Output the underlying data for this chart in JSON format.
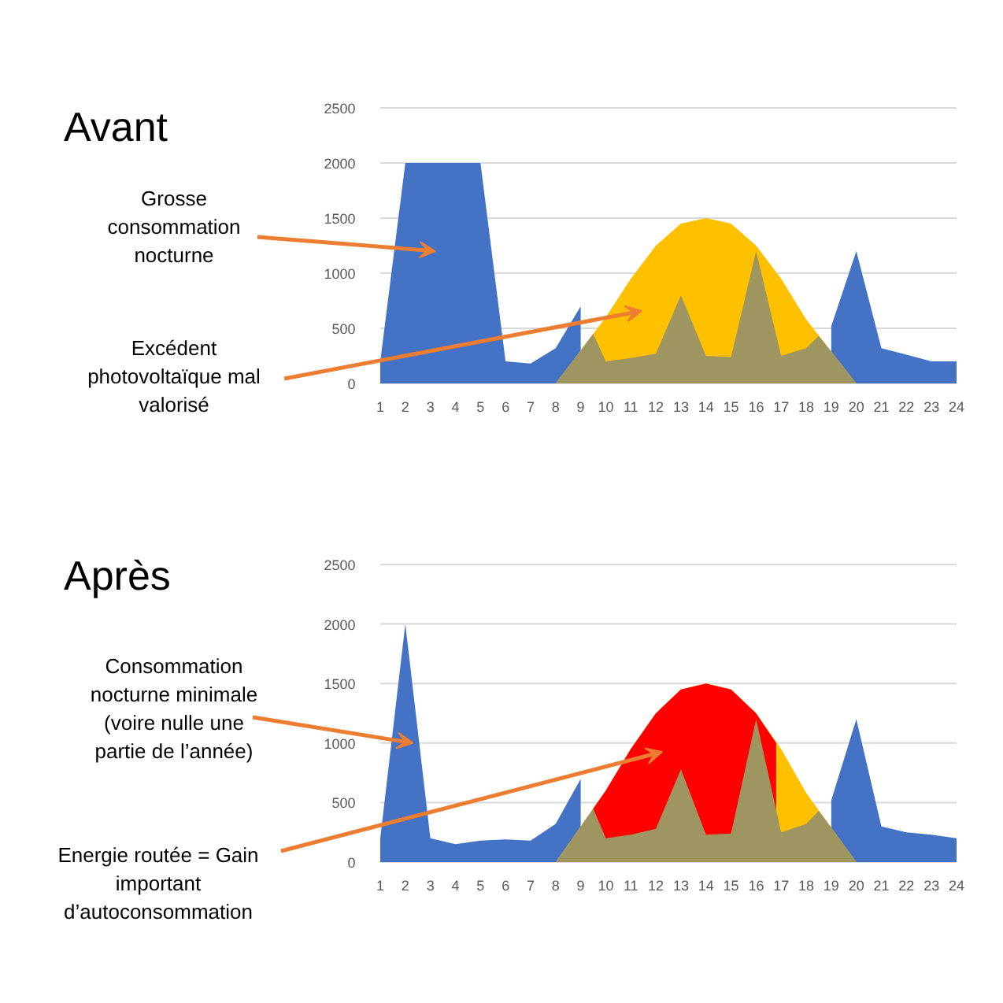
{
  "chart_data": [
    {
      "type": "area",
      "title": "Avant",
      "x": [
        1,
        2,
        3,
        4,
        5,
        6,
        7,
        8,
        9,
        10,
        11,
        12,
        13,
        14,
        15,
        16,
        17,
        18,
        19,
        20,
        21,
        22,
        23,
        24
      ],
      "series": [
        {
          "color": "#4472c4",
          "values": [
            200,
            2000,
            2000,
            2000,
            2000,
            200,
            180,
            320,
            700,
            null,
            null,
            null,
            null,
            null,
            null,
            null,
            null,
            null,
            520,
            1200,
            320,
            260,
            200,
            200
          ]
        },
        {
          "color": "#ffc000",
          "x": [
            8,
            9,
            10,
            11,
            12,
            13,
            14,
            15,
            16,
            17,
            18,
            19,
            20
          ],
          "values": [
            0,
            300,
            600,
            950,
            1250,
            1450,
            1500,
            1450,
            1250,
            950,
            580,
            290,
            0
          ]
        },
        {
          "color": "#9e9560",
          "x": [
            8,
            9,
            9.5,
            10,
            11,
            12,
            13,
            14,
            15,
            16,
            17,
            18,
            18.5,
            19,
            20
          ],
          "values": [
            0,
            300,
            450,
            200,
            230,
            270,
            800,
            250,
            240,
            1200,
            250,
            320,
            430,
            290,
            0
          ]
        }
      ],
      "xlim": [
        1,
        24
      ],
      "ylim": [
        0,
        2500
      ],
      "xticks": [
        1,
        2,
        3,
        4,
        5,
        6,
        7,
        8,
        9,
        10,
        11,
        12,
        13,
        14,
        15,
        16,
        17,
        18,
        19,
        20,
        21,
        22,
        23,
        24
      ],
      "yticks": [
        0,
        500,
        1000,
        1500,
        2000,
        2500
      ],
      "grid": "y",
      "annotations": [
        "Grosse consommation nocturne",
        "Excédent photovoltaïque mal valorisé"
      ]
    },
    {
      "type": "area",
      "title": "Après",
      "x": [
        1,
        2,
        3,
        4,
        5,
        6,
        7,
        8,
        9,
        10,
        11,
        12,
        13,
        14,
        15,
        16,
        17,
        18,
        19,
        20,
        21,
        22,
        23,
        24
      ],
      "series": [
        {
          "color": "#4472c4",
          "values": [
            200,
            2000,
            200,
            150,
            180,
            190,
            180,
            320,
            700,
            null,
            null,
            null,
            null,
            null,
            null,
            null,
            null,
            null,
            520,
            1200,
            300,
            250,
            230,
            200
          ]
        },
        {
          "color": "#ffc000",
          "x": [
            8,
            9,
            10,
            11,
            12,
            13,
            14,
            15,
            16,
            17,
            18,
            19,
            20
          ],
          "values": [
            0,
            300,
            600,
            950,
            1250,
            1450,
            1500,
            1450,
            1250,
            950,
            580,
            290,
            0
          ]
        },
        {
          "color": "#ff0000",
          "x": [
            9.5,
            10,
            11,
            12,
            13,
            14,
            15,
            16,
            16.8
          ],
          "values": [
            450,
            600,
            950,
            1250,
            1450,
            1500,
            1450,
            1250,
            1000
          ]
        },
        {
          "color": "#9e9560",
          "x": [
            8,
            9,
            9.5,
            10,
            11,
            12,
            13,
            14,
            15,
            16,
            17,
            18,
            18.5,
            19,
            20
          ],
          "values": [
            0,
            300,
            450,
            200,
            230,
            280,
            780,
            230,
            240,
            1200,
            250,
            320,
            430,
            290,
            0
          ]
        }
      ],
      "xlim": [
        1,
        24
      ],
      "ylim": [
        0,
        2500
      ],
      "xticks": [
        1,
        2,
        3,
        4,
        5,
        6,
        7,
        8,
        9,
        10,
        11,
        12,
        13,
        14,
        15,
        16,
        17,
        18,
        19,
        20,
        21,
        22,
        23,
        24
      ],
      "yticks": [
        0,
        500,
        1000,
        1500,
        2000,
        2500
      ],
      "grid": "y",
      "annotations": [
        {
          "text": "Consommation nocturne minimale (voire nulle une partie de l’année)",
          "x": 2.3,
          "y": 1000
        },
        "Energie routée = Gain important d’autoconsommation"
      ]
    }
  ]
}
